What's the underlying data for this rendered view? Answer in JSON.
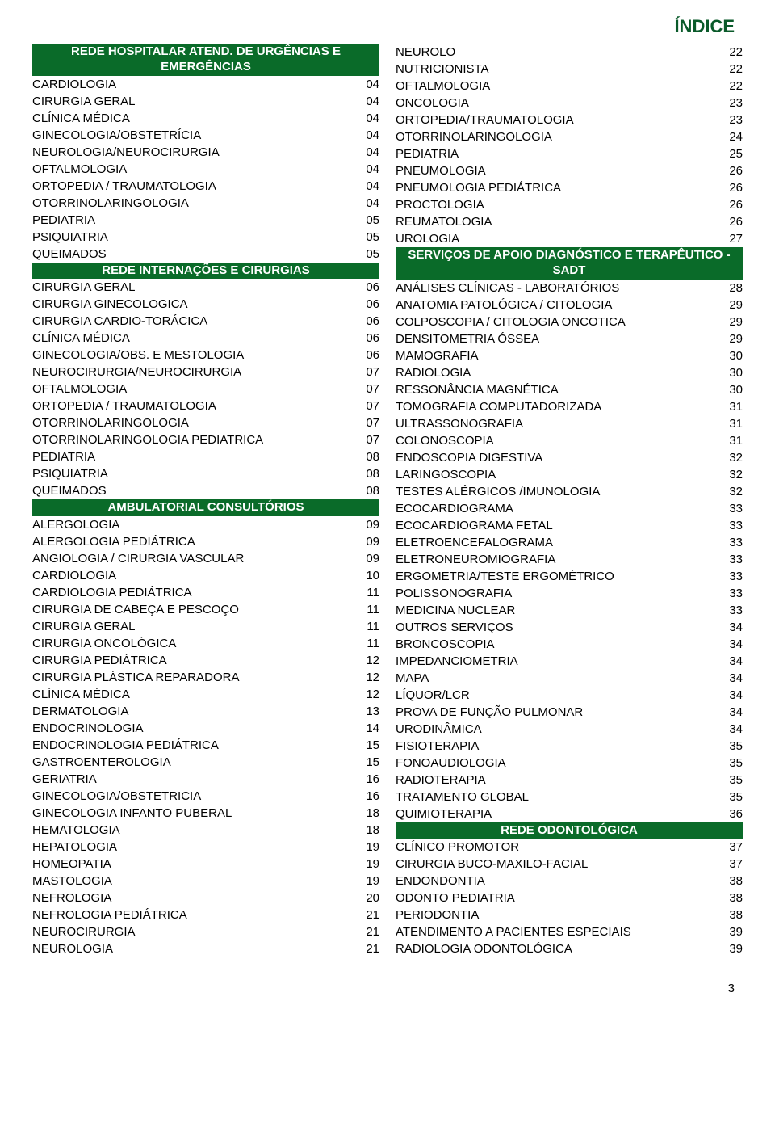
{
  "title": "ÍNDICE",
  "page_number": "3",
  "colors": {
    "header_bg": "#0a6b29",
    "header_fg": "#ffffff",
    "title_color": "#0a5a2a",
    "text_color": "#000000",
    "background": "#ffffff"
  },
  "typography": {
    "title_fontsize": 22,
    "header_fontsize": 15,
    "row_fontsize": 15,
    "font_family": "Arial"
  },
  "left": {
    "sections": [
      {
        "heading": "REDE HOSPITALAR ATEND. DE URGÊNCIAS E EMERGÊNCIAS",
        "items": [
          {
            "label": "CARDIOLOGIA",
            "page": "04"
          },
          {
            "label": "CIRURGIA GERAL",
            "page": "04"
          },
          {
            "label": "CLÍNICA MÉDICA",
            "page": "04"
          },
          {
            "label": "GINECOLOGIA/OBSTETRÍCIA",
            "page": "04"
          },
          {
            "label": "NEUROLOGIA/NEUROCIRURGIA",
            "page": "04"
          },
          {
            "label": "OFTALMOLOGIA",
            "page": "04"
          },
          {
            "label": "ORTOPEDIA / TRAUMATOLOGIA",
            "page": "04"
          },
          {
            "label": "OTORRINOLARINGOLOGIA",
            "page": "04"
          },
          {
            "label": "PEDIATRIA",
            "page": "05"
          },
          {
            "label": "PSIQUIATRIA",
            "page": "05"
          },
          {
            "label": "QUEIMADOS",
            "page": "05"
          }
        ]
      },
      {
        "heading": "REDE  INTERNAÇÕES E CIRURGIAS",
        "items": [
          {
            "label": "CIRURGIA GERAL",
            "page": "06"
          },
          {
            "label": "CIRURGIA GINECOLOGICA",
            "page": "06"
          },
          {
            "label": "CIRURGIA CARDIO-TORÁCICA",
            "page": "06"
          },
          {
            "label": "CLÍNICA MÉDICA",
            "page": "06"
          },
          {
            "label": "GINECOLOGIA/OBS. E MESTOLOGIA",
            "page": "06"
          },
          {
            "label": "NEUROCIRURGIA/NEUROCIRURGIA",
            "page": "07"
          },
          {
            "label": "OFTALMOLOGIA",
            "page": "07"
          },
          {
            "label": "ORTOPEDIA / TRAUMATOLOGIA",
            "page": "07"
          },
          {
            "label": "OTORRINOLARINGOLOGIA",
            "page": "07"
          },
          {
            "label": "OTORRINOLARINGOLOGIA PEDIATRICA",
            "page": "07"
          },
          {
            "label": "PEDIATRIA",
            "page": "08"
          },
          {
            "label": "PSIQUIATRIA",
            "page": "08"
          },
          {
            "label": "QUEIMADOS",
            "page": "08"
          }
        ]
      },
      {
        "heading": "AMBULATORIAL CONSULTÓRIOS",
        "items": [
          {
            "label": "ALERGOLOGIA",
            "page": "09"
          },
          {
            "label": "ALERGOLOGIA PEDIÁTRICA",
            "page": "09"
          },
          {
            "label": "ANGIOLOGIA / CIRURGIA VASCULAR",
            "page": "09"
          },
          {
            "label": "CARDIOLOGIA",
            "page": "10"
          },
          {
            "label": "CARDIOLOGIA PEDIÁTRICA",
            "page": "11"
          },
          {
            "label": "CIRURGIA DE CABEÇA E PESCOÇO",
            "page": "11"
          },
          {
            "label": "CIRURGIA GERAL",
            "page": "11"
          },
          {
            "label": "CIRURGIA ONCOLÓGICA",
            "page": "11"
          },
          {
            "label": "CIRURGIA PEDIÁTRICA",
            "page": "12"
          },
          {
            "label": "CIRURGIA PLÁSTICA REPARADORA",
            "page": "12"
          },
          {
            "label": "CLÍNICA MÉDICA",
            "page": "12"
          },
          {
            "label": "DERMATOLOGIA",
            "page": "13"
          },
          {
            "label": "ENDOCRINOLOGIA",
            "page": "14"
          },
          {
            "label": "ENDOCRINOLOGIA PEDIÁTRICA",
            "page": "15"
          },
          {
            "label": "GASTROENTEROLOGIA",
            "page": "15"
          },
          {
            "label": "GERIATRIA",
            "page": "16"
          },
          {
            "label": "GINECOLOGIA/OBSTETRICIA",
            "page": "16"
          },
          {
            "label": "GINECOLOGIA INFANTO PUBERAL",
            "page": "18"
          },
          {
            "label": "HEMATOLOGIA",
            "page": "18"
          },
          {
            "label": "HEPATOLOGIA",
            "page": "19"
          },
          {
            "label": "HOMEOPATIA",
            "page": "19"
          },
          {
            "label": "MASTOLOGIA",
            "page": "19"
          },
          {
            "label": "NEFROLOGIA",
            "page": "20"
          },
          {
            "label": "NEFROLOGIA PEDIÁTRICA",
            "page": "21"
          },
          {
            "label": "NEUROCIRURGIA",
            "page": "21"
          },
          {
            "label": "NEUROLOGIA",
            "page": "21"
          }
        ]
      }
    ]
  },
  "right": {
    "sections": [
      {
        "heading": null,
        "items": [
          {
            "label": "NEUROLO",
            "page": "22"
          },
          {
            "label": "NUTRICIONISTA",
            "page": "22"
          },
          {
            "label": "OFTALMOLOGIA",
            "page": "22"
          },
          {
            "label": "ONCOLOGIA",
            "page": "23"
          },
          {
            "label": "ORTOPEDIA/TRAUMATOLOGIA",
            "page": "23"
          },
          {
            "label": "OTORRINOLARINGOLOGIA",
            "page": "24"
          },
          {
            "label": "PEDIATRIA",
            "page": "25"
          },
          {
            "label": "PNEUMOLOGIA",
            "page": "26"
          },
          {
            "label": "PNEUMOLOGIA PEDIÁTRICA",
            "page": "26"
          },
          {
            "label": "PROCTOLOGIA",
            "page": "26"
          },
          {
            "label": "REUMATOLOGIA",
            "page": "26"
          },
          {
            "label": "UROLOGIA",
            "page": "27"
          }
        ]
      },
      {
        "heading": "SERVIÇOS DE APOIO DIAGNÓSTICO E TERAPÊUTICO - SADT",
        "items": [
          {
            "label": "ANÁLISES CLÍNICAS - LABORATÓRIOS",
            "page": "28"
          },
          {
            "label": "ANATOMIA PATOLÓGICA / CITOLOGIA",
            "page": "29"
          },
          {
            "label": "COLPOSCOPIA / CITOLOGIA ONCOTICA",
            "page": "29"
          },
          {
            "label": "DENSITOMETRIA ÓSSEA",
            "page": "29"
          },
          {
            "label": "MAMOGRAFIA",
            "page": "30"
          },
          {
            "label": "RADIOLOGIA",
            "page": "30"
          },
          {
            "label": "RESSONÂNCIA MAGNÉTICA",
            "page": "30"
          },
          {
            "label": "TOMOGRAFIA COMPUTADORIZADA",
            "page": "31"
          },
          {
            "label": "ULTRASSONOGRAFIA",
            "page": "31"
          },
          {
            "label": "COLONOSCOPIA",
            "page": "31"
          },
          {
            "label": "ENDOSCOPIA DIGESTIVA",
            "page": "32"
          },
          {
            "label": "LARINGOSCOPIA",
            "page": "32"
          },
          {
            "label": "TESTES ALÉRGICOS /IMUNOLOGIA",
            "page": "32"
          },
          {
            "label": "ECOCARDIOGRAMA",
            "page": "33"
          },
          {
            "label": "ECOCARDIOGRAMA FETAL",
            "page": "33"
          },
          {
            "label": "ELETROENCEFALOGRAMA",
            "page": "33"
          },
          {
            "label": "ELETRONEUROMIOGRAFIA",
            "page": "33"
          },
          {
            "label": "ERGOMETRIA/TESTE ERGOMÉTRICO",
            "page": "33"
          },
          {
            "label": "POLISSONOGRAFIA",
            "page": "33"
          },
          {
            "label": "MEDICINA NUCLEAR",
            "page": "33"
          },
          {
            "label": "OUTROS SERVIÇOS",
            "page": "34"
          },
          {
            "label": "BRONCOSCOPIA",
            "page": "34"
          },
          {
            "label": "IMPEDANCIOMETRIA",
            "page": "34"
          },
          {
            "label": "MAPA",
            "page": "34"
          },
          {
            "label": "LÍQUOR/LCR",
            "page": "34"
          },
          {
            "label": "PROVA DE FUNÇÃO PULMONAR",
            "page": "34"
          },
          {
            "label": "URODINÂMICA",
            "page": "34"
          },
          {
            "label": "FISIOTERAPIA",
            "page": "35"
          },
          {
            "label": "FONOAUDIOLOGIA",
            "page": "35"
          },
          {
            "label": "RADIOTERAPIA",
            "page": "35"
          },
          {
            "label": "TRATAMENTO GLOBAL",
            "page": "35"
          },
          {
            "label": "QUIMIOTERAPIA",
            "page": "36"
          }
        ]
      },
      {
        "heading": "REDE ODONTOLÓGICA",
        "items": [
          {
            "label": "CLÍNICO PROMOTOR",
            "page": "37"
          },
          {
            "label": "CIRURGIA BUCO-MAXILO-FACIAL",
            "page": "37"
          },
          {
            "label": "ENDONDONTIA",
            "page": "38"
          },
          {
            "label": "ODONTO PEDIATRIA",
            "page": "38"
          },
          {
            "label": "PERIODONTIA",
            "page": "38"
          },
          {
            "label": "ATENDIMENTO A PACIENTES ESPECIAIS",
            "page": "39"
          },
          {
            "label": "RADIOLOGIA ODONTOLÓGICA",
            "page": "39"
          }
        ]
      }
    ]
  }
}
